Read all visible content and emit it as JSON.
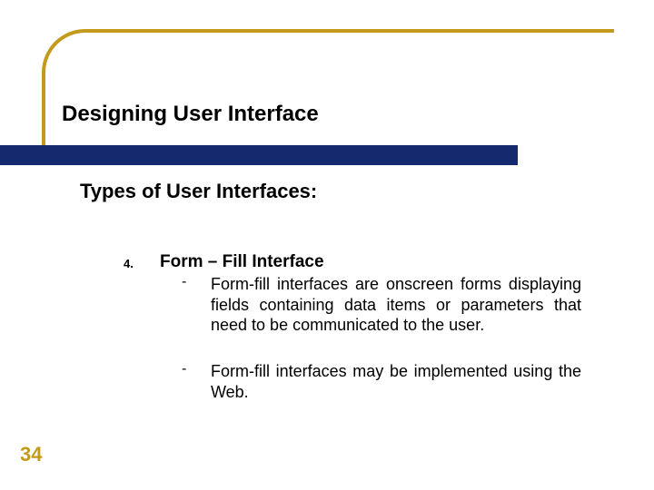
{
  "decor": {
    "corner_color": "#c49a1a",
    "band_color": "#152a6e"
  },
  "title": "Designing User Interface",
  "subtitle": "Types of User Interfaces:",
  "list": {
    "number": "4.",
    "heading": "Form – Fill Interface",
    "bullets": [
      "Form-fill interfaces are onscreen forms displaying fields containing data items or parameters that need to be communicated to the user.",
      "Form-fill interfaces may be implemented using the Web."
    ]
  },
  "page_number": "34",
  "page_number_color": "#c49a1a"
}
